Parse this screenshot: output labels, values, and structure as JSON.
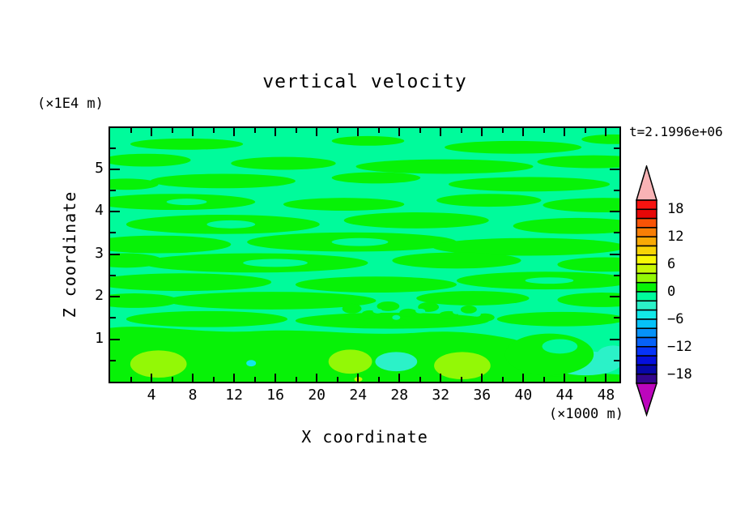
{
  "title": "vertical velocity",
  "annotations": {
    "time_label": "t=2.1996e+06"
  },
  "axes": {
    "x": {
      "title": "X coordinate",
      "unit": "(×1000 m)",
      "range": [
        0,
        49.3
      ],
      "major_ticks": [
        4,
        8,
        12,
        16,
        20,
        24,
        28,
        32,
        36,
        40,
        44,
        48
      ],
      "minor_step": 2
    },
    "y": {
      "title": "Z coordinate",
      "unit": "(×1E4 m)",
      "range": [
        0,
        5.97
      ],
      "major_ticks": [
        1,
        2,
        3,
        4,
        5
      ],
      "minor_step": 0.5
    }
  },
  "colorbar": {
    "value_range": [
      -20,
      20
    ],
    "band_size": 2,
    "labels": [
      {
        "value": 18,
        "text": "18"
      },
      {
        "value": 12,
        "text": "12"
      },
      {
        "value": 6,
        "text": "6"
      },
      {
        "value": 0,
        "text": "0"
      },
      {
        "value": -6,
        "text": "−6"
      },
      {
        "value": -12,
        "text": "−12"
      },
      {
        "value": -18,
        "text": "−18"
      }
    ],
    "band_colors_top_to_bottom": [
      "#F81310",
      "#E60707",
      "#F85306",
      "#F87E06",
      "#F8A906",
      "#F8D306",
      "#F8F806",
      "#C6F806",
      "#93F806",
      "#07F207",
      "#00FB9B",
      "#2BF2C8",
      "#12E8E8",
      "#06C2F8",
      "#0692F8",
      "#0662F8",
      "#0634F8",
      "#0510DC",
      "#0707A8",
      "#33058E"
    ],
    "over_arrow_color": "#F8B3B5",
    "under_arrow_color": "#BC06BC"
  },
  "field_colors": {
    "background_band": "#00FB9B",
    "streak_band": "#07F207",
    "updraft_core": "#93F806",
    "updraft_peak": "#C6F806",
    "downdraft_patch": "#2BF2C8",
    "downdraft_core": "#12E8E8"
  },
  "chart_data": {
    "type": "heatmap",
    "subtype": "filled-contour",
    "title": "vertical velocity",
    "xlabel": "X coordinate",
    "x_unit": "×1000 m",
    "ylabel": "Z coordinate",
    "y_unit": "×1E4 m",
    "x_ticks": [
      4,
      8,
      12,
      16,
      20,
      24,
      28,
      32,
      36,
      40,
      44,
      48
    ],
    "y_ticks": [
      1,
      2,
      3,
      4,
      5
    ],
    "x_range": [
      0,
      49.3
    ],
    "y_range": [
      0,
      5.97
    ],
    "time_annotation": "t=2.1996e+06",
    "contour_interval": 2,
    "colorbar_tick_values": [
      18,
      12,
      6,
      0,
      -6,
      -12,
      -18
    ],
    "colorbar_value_range": [
      -20,
      20
    ],
    "field_summary": {
      "dominant_band": "-2 to 0 (spring green) with horizontal streaks of 0 to 2 (green) throughout the interior",
      "near_surface_layer": "0 to 2 band below z≈1",
      "updraft_cores_band_2_to_4": [
        {
          "x": 4,
          "z": 0.4
        },
        {
          "x": 24,
          "z": 0.45
        },
        {
          "x": 34,
          "z": 0.4
        }
      ],
      "downdraft_patches_band_minus4_to_minus2": [
        {
          "x": 27.5,
          "z": 0.45
        },
        {
          "x": 45.5,
          "z": 0.4
        },
        {
          "x": 48.5,
          "z": 0.6
        }
      ],
      "small_downdraft_core_minus6_to_minus4": [
        {
          "x": 13.7,
          "z": 0.43
        }
      ],
      "noisy_fine_scale_region": {
        "x_from": 23,
        "x_to": 37,
        "z_from": 1.3,
        "z_to": 1.9
      }
    }
  }
}
